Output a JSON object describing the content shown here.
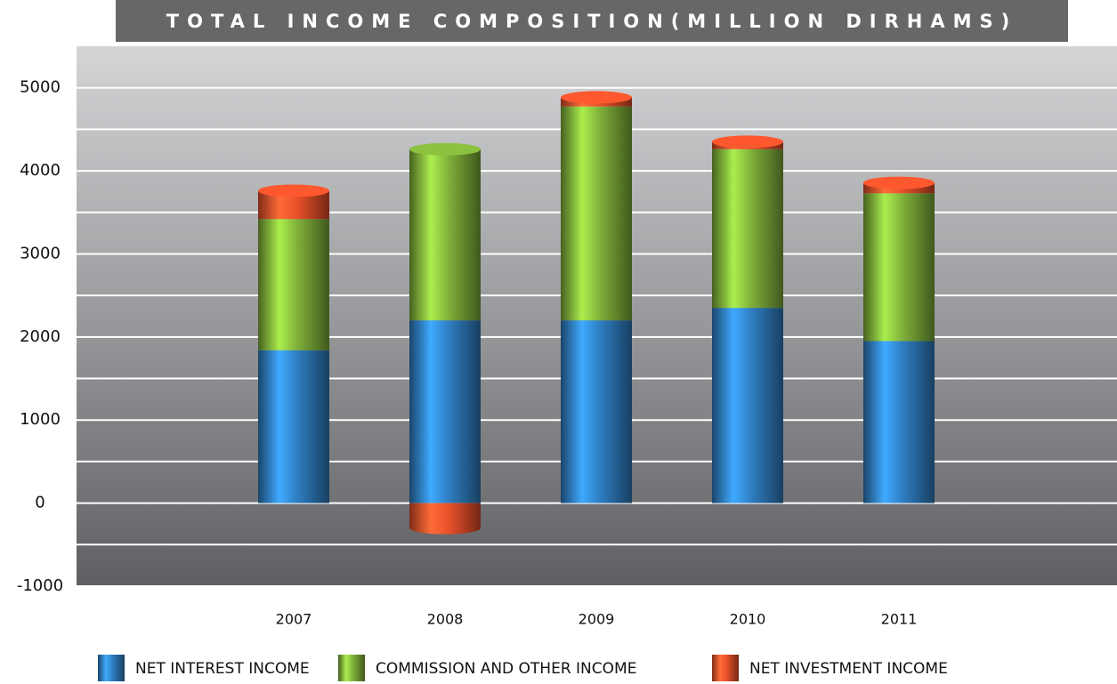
{
  "chart_data": {
    "type": "bar",
    "stacked": true,
    "title": "TOTAL INCOME COMPOSITION(MILLION DIRHAMS)",
    "categories": [
      "2007",
      "2008",
      "2009",
      "2010",
      "2011"
    ],
    "series": [
      {
        "name": "NET INTEREST INCOME",
        "color": "#2f7ec2",
        "values": [
          1840,
          2200,
          2200,
          2350,
          1950
        ]
      },
      {
        "name": "COMMISSION AND OTHER INCOME",
        "color": "#7fb03a",
        "values": [
          1580,
          2060,
          2575,
          1910,
          1780
        ]
      },
      {
        "name": "NET INVESTMENT INCOME",
        "color": "#e8502a",
        "values": [
          340,
          -300,
          110,
          90,
          125
        ]
      }
    ],
    "ylim": [
      -1000,
      5500
    ],
    "yticks": [
      -1000,
      0,
      1000,
      2000,
      3000,
      4000,
      5000
    ],
    "grid": true,
    "legend": "bottom"
  }
}
